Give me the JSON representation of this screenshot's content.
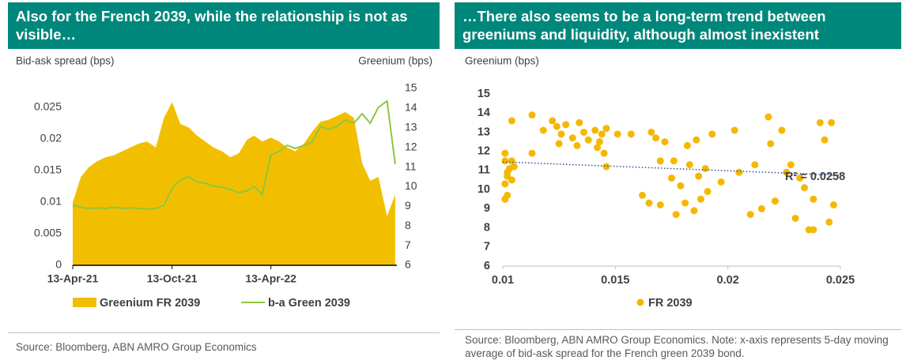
{
  "chart_data": [
    {
      "type": "combo",
      "title": "Also for the French 2039, while the relationship is not as visible…",
      "y_label": "Bid-ask spread (bps)",
      "y2_label": "Greenium (bps)",
      "note": "Source: Bloomberg, ABN AMRO Group Economics",
      "x": [
        "2021-04-13",
        "2021-04-28",
        "2021-05-13",
        "2021-05-28",
        "2021-06-13",
        "2021-06-28",
        "2021-07-13",
        "2021-07-28",
        "2021-08-13",
        "2021-08-28",
        "2021-09-13",
        "2021-09-28",
        "2021-10-13",
        "2021-10-28",
        "2021-11-13",
        "2021-11-28",
        "2021-12-13",
        "2021-12-28",
        "2022-01-13",
        "2022-01-28",
        "2022-02-13",
        "2022-02-28",
        "2022-03-13",
        "2022-03-28",
        "2022-04-13",
        "2022-04-28",
        "2022-05-13",
        "2022-05-28",
        "2022-06-13",
        "2022-06-28",
        "2022-07-13",
        "2022-07-28",
        "2022-08-13",
        "2022-08-28",
        "2022-09-13",
        "2022-09-28",
        "2022-10-13",
        "2022-10-28",
        "2022-11-13",
        "2022-11-28"
      ],
      "xlim": [
        "2021-04-13",
        "2022-12-01"
      ],
      "xticks": [
        {
          "value": "2021-04-13",
          "label": "13-Apr-21"
        },
        {
          "value": "2021-10-13",
          "label": "13-Oct-21"
        },
        {
          "value": "2022-04-13",
          "label": "13-Apr-22"
        }
      ],
      "ylim": [
        0,
        0.028
      ],
      "yticks": [
        0,
        0.005,
        0.01,
        0.015,
        0.02,
        0.025
      ],
      "y2lim": [
        6,
        15
      ],
      "y2ticks": [
        6,
        7,
        8,
        9,
        10,
        11,
        12,
        13,
        14,
        15
      ],
      "series": [
        {
          "name": "Greenium FR 2039",
          "type": "area",
          "axis": "y2",
          "color": "#f2bf00",
          "values": [
            9.2,
            10.5,
            11.0,
            11.3,
            11.5,
            11.6,
            11.8,
            12.0,
            12.2,
            12.3,
            12.0,
            13.5,
            14.3,
            13.2,
            13.0,
            12.6,
            12.3,
            12.0,
            11.8,
            11.5,
            11.7,
            12.4,
            12.6,
            12.3,
            12.5,
            12.3,
            12.0,
            11.8,
            12.2,
            12.8,
            13.3,
            13.4,
            13.6,
            13.8,
            13.5,
            11.2,
            10.3,
            10.5,
            8.5,
            9.6
          ]
        },
        {
          "name": "b-a Green 2039",
          "type": "line",
          "axis": "y",
          "color": "#8dc63f",
          "values": [
            0.0095,
            0.0092,
            0.009,
            0.0091,
            0.009,
            0.0092,
            0.009,
            0.0091,
            0.009,
            0.0089,
            0.009,
            0.0095,
            0.0122,
            0.0135,
            0.014,
            0.0132,
            0.013,
            0.0125,
            0.0124,
            0.012,
            0.0115,
            0.0118,
            0.0125,
            0.0112,
            0.0175,
            0.018,
            0.019,
            0.0185,
            0.019,
            0.0195,
            0.022,
            0.0215,
            0.022,
            0.023,
            0.0225,
            0.024,
            0.0225,
            0.025,
            0.026,
            0.016
          ]
        }
      ]
    },
    {
      "type": "scatter",
      "title": "…There also seems to be a long-term trend between greeniums and liquidity, although almost inexistent",
      "y_label": "Greenium (bps)",
      "note": "Source: Bloomberg, ABN AMRO Group Economics. Note: x-axis represents 5-day moving average of bid-ask spread for the French green 2039 bond.",
      "annotation": "R² = 0.0258",
      "xlim": [
        0.01,
        0.025
      ],
      "xticks": [
        0.01,
        0.015,
        0.02,
        0.025
      ],
      "ylim": [
        6,
        15
      ],
      "yticks": [
        6,
        7,
        8,
        9,
        10,
        11,
        12,
        13,
        14,
        15
      ],
      "trendline": {
        "color": "#2f4f8f",
        "x": [
          0.01,
          0.025
        ],
        "values": [
          11.45,
          10.75
        ]
      },
      "series": [
        {
          "name": "FR 2039",
          "color": "#f5b800",
          "x": [
            0.0101,
            0.0101,
            0.0102,
            0.0101,
            0.0102,
            0.0103,
            0.0104,
            0.0104,
            0.0102,
            0.0101,
            0.0105,
            0.0104,
            0.0113,
            0.0113,
            0.0118,
            0.0122,
            0.0124,
            0.0126,
            0.0125,
            0.0128,
            0.0131,
            0.0133,
            0.0136,
            0.0138,
            0.0134,
            0.0141,
            0.0143,
            0.0144,
            0.0145,
            0.0146,
            0.0142,
            0.0146,
            0.0151,
            0.0157,
            0.0162,
            0.0165,
            0.0166,
            0.0168,
            0.017,
            0.017,
            0.0172,
            0.0175,
            0.0176,
            0.0177,
            0.0179,
            0.0181,
            0.0182,
            0.0183,
            0.0185,
            0.0186,
            0.0187,
            0.0188,
            0.019,
            0.0191,
            0.0193,
            0.0197,
            0.0203,
            0.0205,
            0.021,
            0.0212,
            0.0215,
            0.0218,
            0.0219,
            0.0221,
            0.0224,
            0.0226,
            0.0228,
            0.023,
            0.0232,
            0.0234,
            0.0236,
            0.0238,
            0.0238,
            0.0241,
            0.0243,
            0.0245,
            0.0246,
            0.0247
          ],
          "values": [
            11.9,
            11.5,
            10.9,
            10.3,
            10.7,
            11.1,
            11.5,
            10.5,
            9.7,
            9.5,
            11.2,
            13.6,
            13.9,
            11.9,
            13.1,
            13.6,
            13.3,
            12.9,
            12.4,
            13.4,
            12.7,
            12.3,
            13.0,
            12.6,
            13.5,
            13.1,
            12.5,
            12.9,
            11.9,
            13.2,
            12.2,
            11.2,
            12.9,
            12.9,
            9.7,
            9.3,
            13.0,
            12.7,
            11.5,
            9.2,
            12.5,
            10.6,
            11.5,
            8.7,
            10.2,
            9.3,
            12.3,
            11.3,
            8.9,
            12.6,
            10.7,
            9.5,
            11.1,
            9.9,
            12.9,
            10.4,
            13.1,
            10.9,
            8.7,
            11.3,
            9.0,
            13.8,
            12.4,
            9.4,
            13.1,
            10.9,
            11.3,
            8.5,
            10.6,
            10.1,
            7.9,
            9.5,
            7.9,
            13.5,
            12.6,
            8.3,
            13.5,
            9.2
          ]
        }
      ]
    }
  ]
}
